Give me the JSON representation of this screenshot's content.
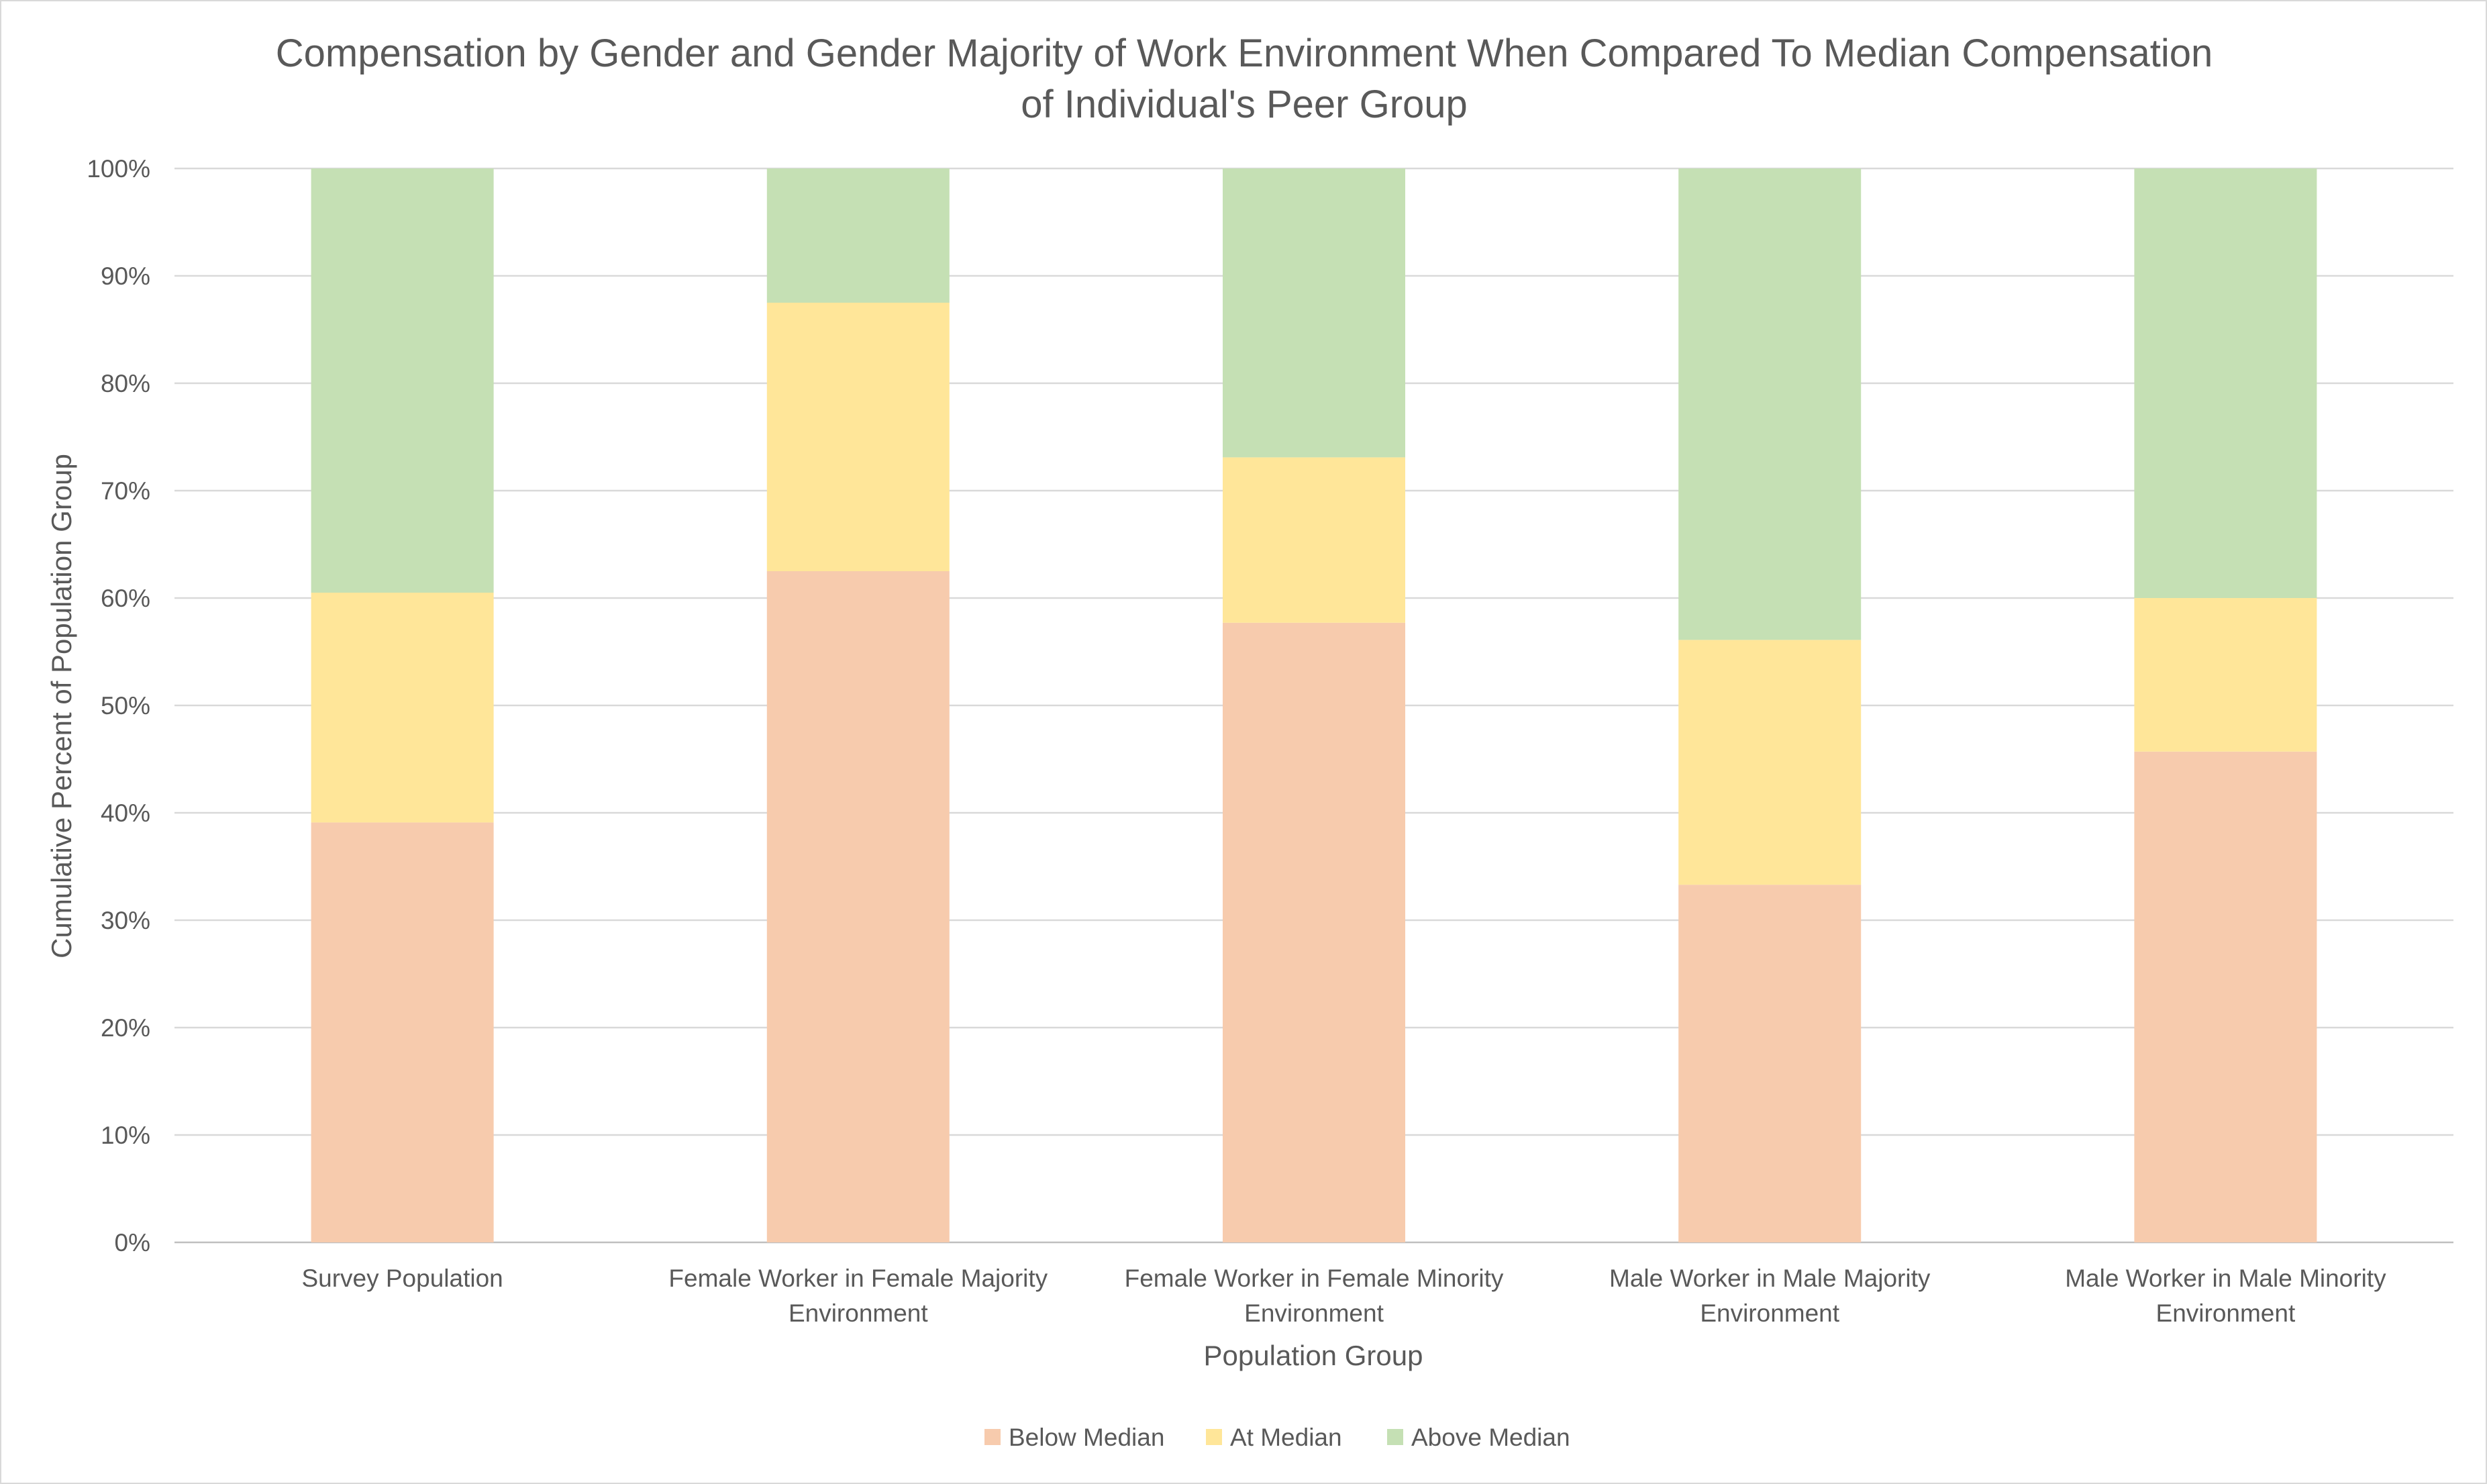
{
  "chart_data": {
    "type": "bar",
    "stacked": true,
    "title_lines": [
      "Compensation by Gender and Gender Majority of Work Environment When Compared To Median Compensation",
      "of Individual's Peer Group"
    ],
    "xlabel": "Population Group",
    "ylabel": "Cumulative Percent of Population Group",
    "ylim": [
      0,
      100
    ],
    "y_ticks": [
      "0%",
      "10%",
      "20%",
      "30%",
      "40%",
      "50%",
      "60%",
      "70%",
      "80%",
      "90%",
      "100%"
    ],
    "grid": true,
    "legend_position": "bottom",
    "categories": [
      [
        "Survey Population"
      ],
      [
        "Female Worker in Female Majority",
        "Environment"
      ],
      [
        "Female Worker in Female Minority",
        "Environment"
      ],
      [
        "Male Worker in Male Majority",
        "Environment"
      ],
      [
        "Male Worker in Male Minority",
        "Environment"
      ]
    ],
    "series": [
      {
        "name": "Below Median",
        "color": "#f7cbad",
        "values": [
          39.1,
          62.5,
          57.7,
          33.3,
          45.7
        ]
      },
      {
        "name": "At Median",
        "color": "#ffe699",
        "values": [
          21.4,
          25.0,
          15.4,
          22.8,
          14.3
        ]
      },
      {
        "name": "Above Median",
        "color": "#c5e0b4",
        "values": [
          39.5,
          12.5,
          26.9,
          43.9,
          40.0
        ]
      }
    ]
  }
}
